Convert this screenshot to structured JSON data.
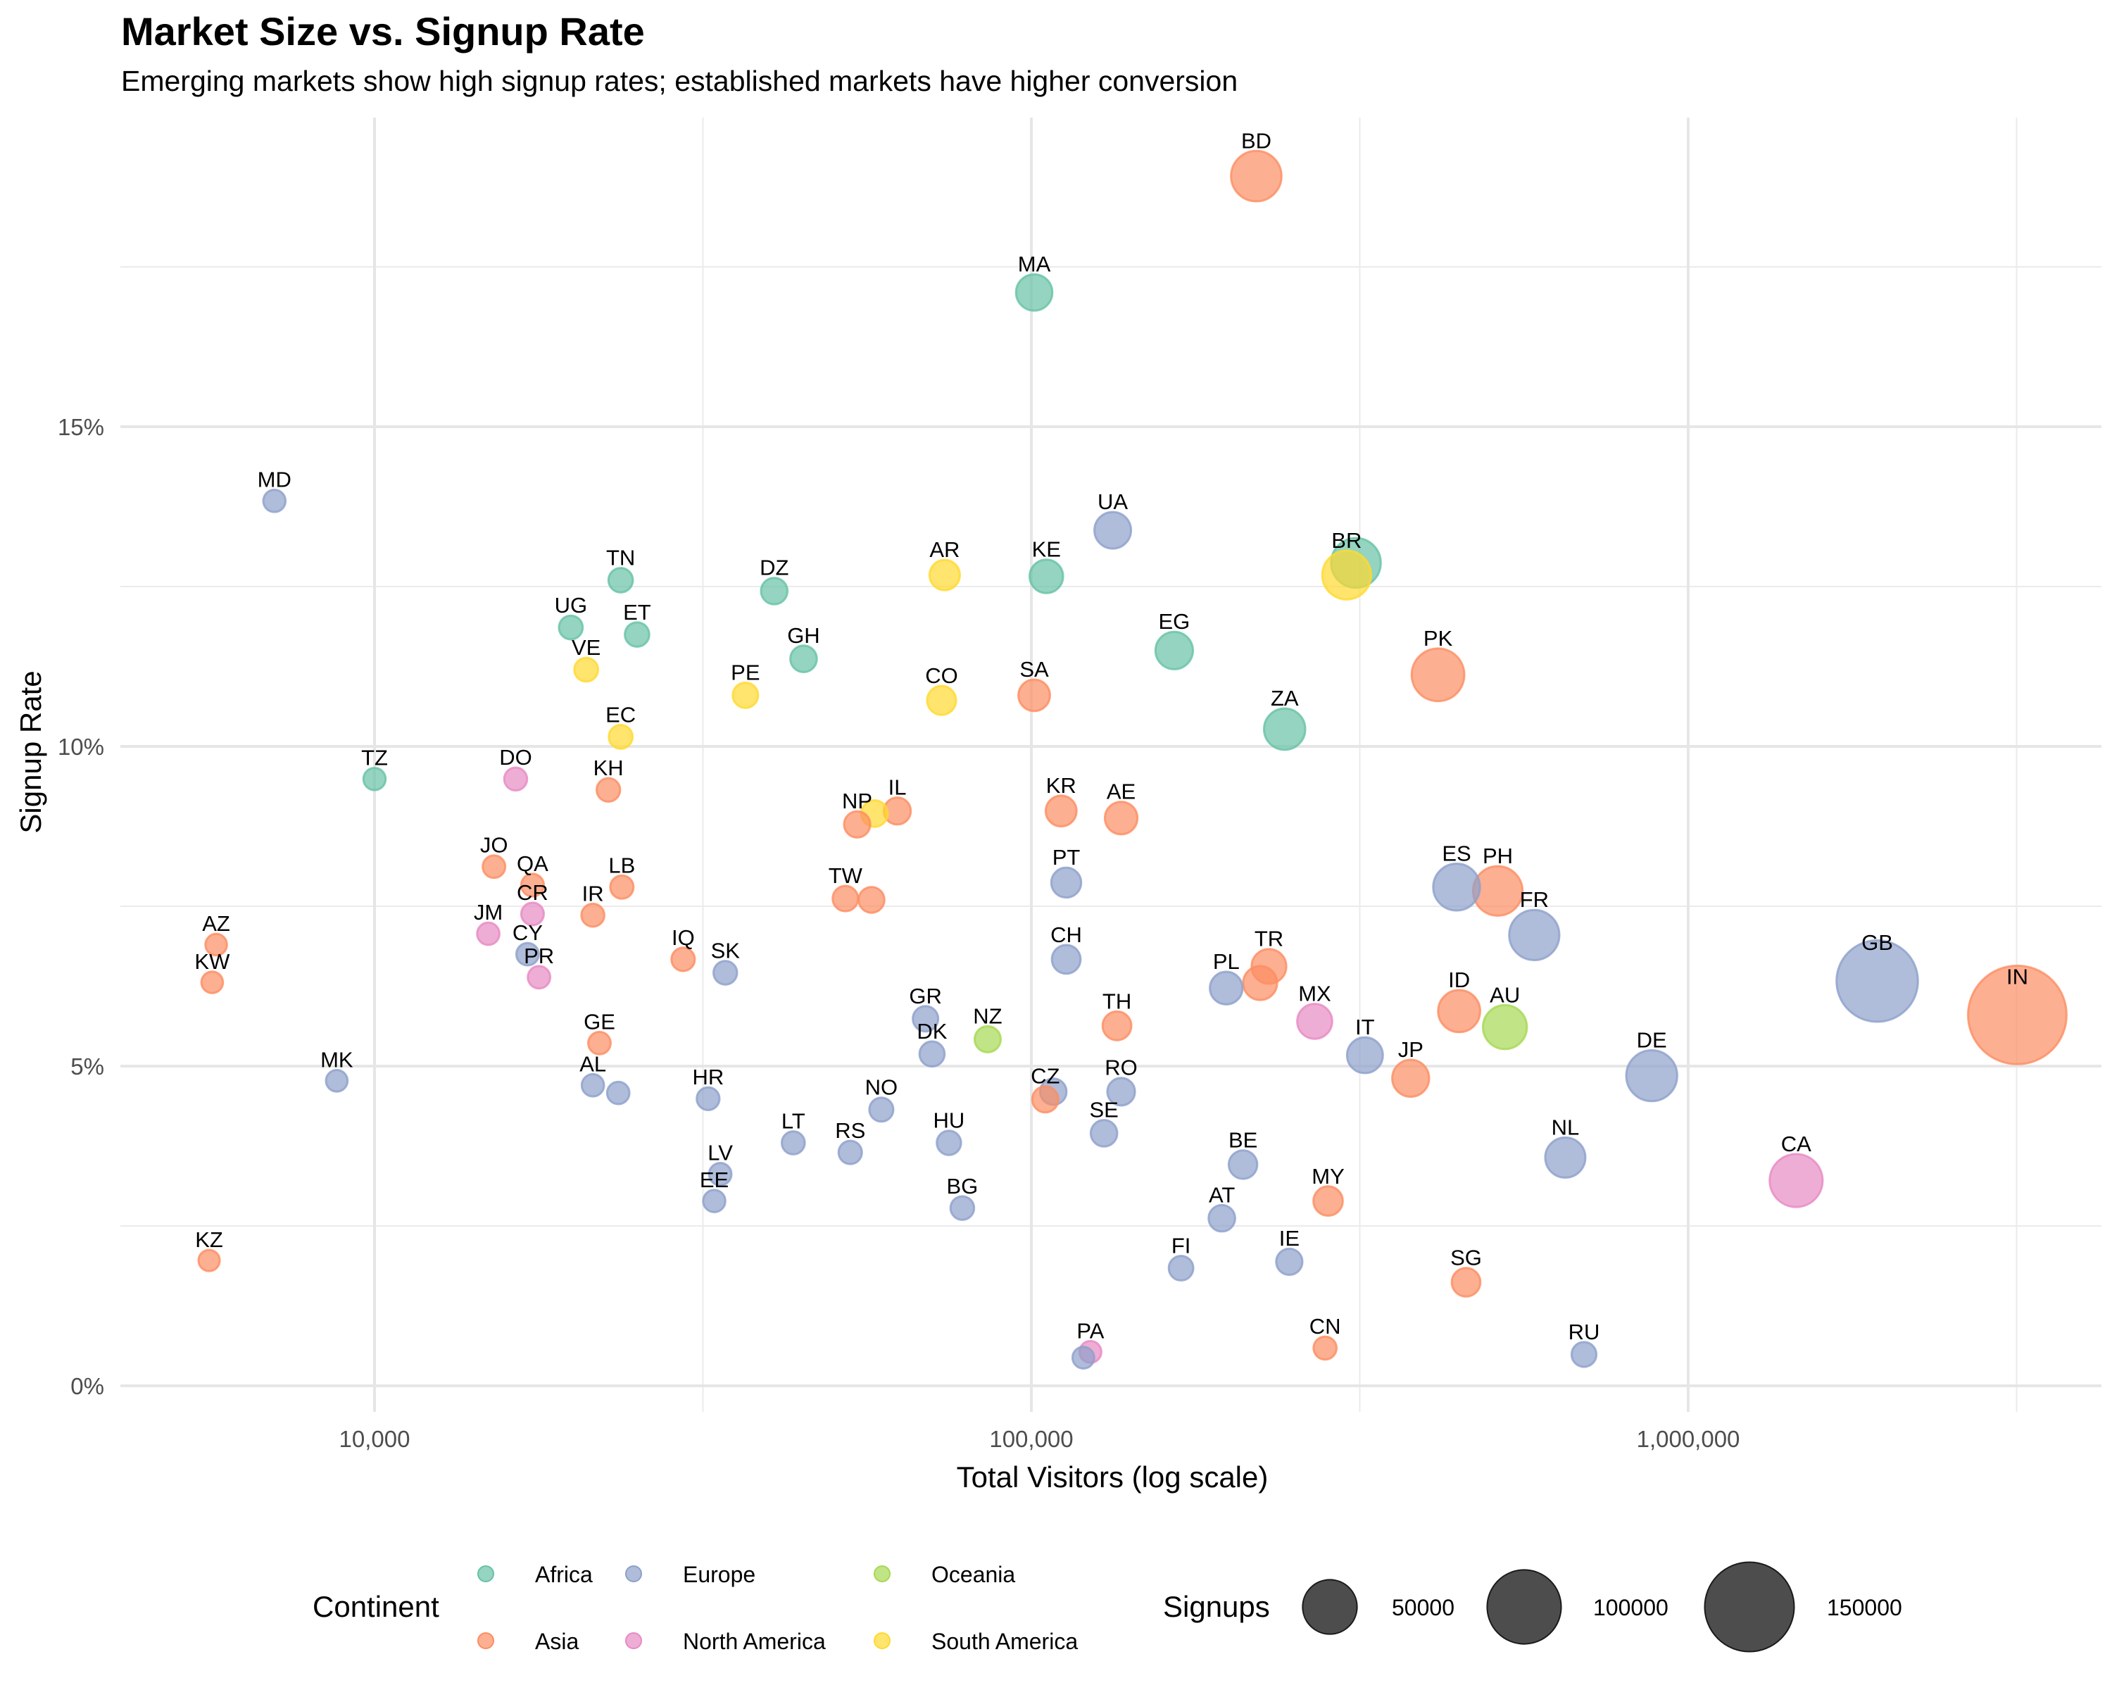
{
  "chart_data": {
    "type": "scatter",
    "title": "Market Size vs. Signup Rate",
    "subtitle": "Emerging markets show high signup rates; established markets have higher conversion",
    "xlabel": "Total Visitors (log scale)",
    "ylabel": "Signup Rate",
    "x_scale": "log10",
    "xlim": [
      4500,
      4000000
    ],
    "ylim": [
      -0.4,
      19.3
    ],
    "x_ticks": [
      {
        "value": 10000,
        "label": "10,000"
      },
      {
        "value": 100000,
        "label": "100,000"
      },
      {
        "value": 1000000,
        "label": "1,000,000"
      }
    ],
    "x_minor": [
      3162,
      31623,
      316228,
      3162278
    ],
    "y_ticks": [
      {
        "value": 0,
        "label": "0%"
      },
      {
        "value": 5,
        "label": "5%"
      },
      {
        "value": 10,
        "label": "10%"
      },
      {
        "value": 15,
        "label": "15%"
      }
    ],
    "y_minor": [
      2.5,
      7.5,
      12.5,
      17.5
    ],
    "grid": true,
    "continents": [
      {
        "name": "Africa",
        "color": "#66C2A5"
      },
      {
        "name": "Asia",
        "color": "#FC8D62"
      },
      {
        "name": "Europe",
        "color": "#8DA0CB"
      },
      {
        "name": "North America",
        "color": "#E78AC3"
      },
      {
        "name": "Oceania",
        "color": "#A6D854"
      },
      {
        "name": "South America",
        "color": "#FFD92F"
      }
    ],
    "color_legend": {
      "title": "Continent",
      "placement": "bottom"
    },
    "size_legend": {
      "title": "Signups",
      "placement": "bottom",
      "values": [
        50000,
        100000,
        150000
      ],
      "labels": [
        "50000",
        "100000",
        "150000"
      ]
    },
    "points": [
      {
        "code": "MD",
        "continent": "Europe",
        "visitors": 7040,
        "rate": 13.84,
        "signups": 974
      },
      {
        "code": "TZ",
        "continent": "Africa",
        "visitors": 10000,
        "rate": 9.49,
        "signups": 949
      },
      {
        "code": "UG",
        "continent": "Africa",
        "visitors": 19900,
        "rate": 11.86,
        "signups": 2360
      },
      {
        "code": "TN",
        "continent": "Africa",
        "visitors": 23700,
        "rate": 12.6,
        "signups": 2986
      },
      {
        "code": "ET",
        "continent": "Africa",
        "visitors": 25100,
        "rate": 11.75,
        "signups": 2949
      },
      {
        "code": "VE",
        "continent": "South America",
        "visitors": 21000,
        "rate": 11.2,
        "signups": 2352
      },
      {
        "code": "EC",
        "continent": "South America",
        "visitors": 23700,
        "rate": 10.15,
        "signups": 2406
      },
      {
        "code": "DO",
        "continent": "North America",
        "visitors": 16400,
        "rate": 9.49,
        "signups": 1556
      },
      {
        "code": "KH",
        "continent": "Asia",
        "visitors": 22700,
        "rate": 9.32,
        "signups": 2116
      },
      {
        "code": "DZ",
        "continent": "Africa",
        "visitors": 40600,
        "rate": 12.43,
        "signups": 5047
      },
      {
        "code": "GH",
        "continent": "Africa",
        "visitors": 45000,
        "rate": 11.37,
        "signups": 5117
      },
      {
        "code": "PE",
        "continent": "South America",
        "visitors": 36700,
        "rate": 10.8,
        "signups": 3964
      },
      {
        "code": "AR",
        "continent": "South America",
        "visitors": 73800,
        "rate": 12.68,
        "signups": 9358
      },
      {
        "code": "CO",
        "continent": "South America",
        "visitors": 73000,
        "rate": 10.72,
        "signups": 7826
      },
      {
        "code": "KE",
        "continent": "Africa",
        "visitors": 105400,
        "rate": 12.66,
        "signups": 13344
      },
      {
        "code": "UA",
        "continent": "Europe",
        "visitors": 133000,
        "rate": 13.38,
        "signups": 17795
      },
      {
        "code": "SA",
        "continent": "Asia",
        "visitors": 101000,
        "rate": 10.8,
        "signups": 10908
      },
      {
        "code": "EG",
        "continent": "Africa",
        "visitors": 165000,
        "rate": 11.5,
        "signups": 18975
      },
      {
        "code": "MA",
        "continent": "Africa",
        "visitors": 101000,
        "rate": 17.1,
        "signups": 17271
      },
      {
        "code": "BD",
        "continent": "Asia",
        "visitors": 220000,
        "rate": 18.92,
        "signups": 41624
      },
      {
        "code": "ZA",
        "continent": "Africa",
        "visitors": 243000,
        "rate": 10.27,
        "signups": 24956
      },
      {
        "code": "BR",
        "continent": "South America",
        "visitors": 302000,
        "rate": 12.68,
        "signups": 38294
      },
      {
        "code": "",
        "continent": "Africa",
        "visitors": 312000,
        "rate": 12.87,
        "signups": 40154
      },
      {
        "code": "PK",
        "continent": "Asia",
        "visitors": 416000,
        "rate": 11.12,
        "signups": 46259
      },
      {
        "code": "JO",
        "continent": "Asia",
        "visitors": 15200,
        "rate": 8.12,
        "signups": 1234
      },
      {
        "code": "QA",
        "continent": "Asia",
        "visitors": 17400,
        "rate": 7.83,
        "signups": 1362
      },
      {
        "code": "CR",
        "continent": "North America",
        "visitors": 17400,
        "rate": 7.38,
        "signups": 1284
      },
      {
        "code": "JM",
        "continent": "North America",
        "visitors": 14900,
        "rate": 7.07,
        "signups": 1053
      },
      {
        "code": "CY",
        "continent": "Europe",
        "visitors": 17100,
        "rate": 6.75,
        "signups": 1154
      },
      {
        "code": "PR",
        "continent": "North America",
        "visitors": 17800,
        "rate": 6.39,
        "signups": 1137
      },
      {
        "code": "IR",
        "continent": "Asia",
        "visitors": 21500,
        "rate": 7.36,
        "signups": 1582
      },
      {
        "code": "LB",
        "continent": "Asia",
        "visitors": 23800,
        "rate": 7.8,
        "signups": 1856
      },
      {
        "code": "AZ",
        "continent": "Asia",
        "visitors": 5740,
        "rate": 6.9,
        "signups": 396
      },
      {
        "code": "KW",
        "continent": "Asia",
        "visitors": 5660,
        "rate": 6.31,
        "signups": 357
      },
      {
        "code": "IQ",
        "continent": "Asia",
        "visitors": 29500,
        "rate": 6.67,
        "signups": 1968
      },
      {
        "code": "SK",
        "continent": "Europe",
        "visitors": 34200,
        "rate": 6.46,
        "signups": 2209
      },
      {
        "code": "GE",
        "continent": "Asia",
        "visitors": 22000,
        "rate": 5.36,
        "signups": 1179
      },
      {
        "code": "AL",
        "continent": "Europe",
        "visitors": 21500,
        "rate": 4.7,
        "signups": 1011
      },
      {
        "code": "",
        "continent": "Europe",
        "visitors": 23500,
        "rate": 4.58,
        "signups": 1076
      },
      {
        "code": "MK",
        "continent": "Europe",
        "visitors": 8760,
        "rate": 4.77,
        "signups": 418
      },
      {
        "code": "KZ",
        "continent": "Asia",
        "visitors": 5600,
        "rate": 1.96,
        "signups": 110
      },
      {
        "code": "HR",
        "continent": "Europe",
        "visitors": 32200,
        "rate": 4.49,
        "signups": 1446
      },
      {
        "code": "LV",
        "continent": "Europe",
        "visitors": 33600,
        "rate": 3.31,
        "signups": 1112
      },
      {
        "code": "EE",
        "continent": "Europe",
        "visitors": 32900,
        "rate": 2.89,
        "signups": 951
      },
      {
        "code": "NP",
        "continent": "Asia",
        "visitors": 54300,
        "rate": 8.78,
        "signups": 4768
      },
      {
        "code": "",
        "continent": "South America",
        "visitors": 57700,
        "rate": 8.95,
        "signups": 5164
      },
      {
        "code": "IL",
        "continent": "Asia",
        "visitors": 62500,
        "rate": 8.99,
        "signups": 5619
      },
      {
        "code": "TW",
        "continent": "Asia",
        "visitors": 52100,
        "rate": 7.62,
        "signups": 3970
      },
      {
        "code": "",
        "continent": "Asia",
        "visitors": 57100,
        "rate": 7.6,
        "signups": 4340
      },
      {
        "code": "KR",
        "continent": "Asia",
        "visitors": 111000,
        "rate": 8.99,
        "signups": 9979
      },
      {
        "code": "AE",
        "continent": "Asia",
        "visitors": 137000,
        "rate": 8.88,
        "signups": 12166
      },
      {
        "code": "PT",
        "continent": "Europe",
        "visitors": 113000,
        "rate": 7.87,
        "signups": 8893
      },
      {
        "code": "CH",
        "continent": "Europe",
        "visitors": 113000,
        "rate": 6.67,
        "signups": 7537
      },
      {
        "code": "GR",
        "continent": "Europe",
        "visitors": 69000,
        "rate": 5.74,
        "signups": 3961
      },
      {
        "code": "DK",
        "continent": "Europe",
        "visitors": 70600,
        "rate": 5.19,
        "signups": 3664
      },
      {
        "code": "NZ",
        "continent": "Oceania",
        "visitors": 85800,
        "rate": 5.42,
        "signups": 4650
      },
      {
        "code": "LT",
        "continent": "Europe",
        "visitors": 43400,
        "rate": 3.8,
        "signups": 1649
      },
      {
        "code": "RS",
        "continent": "Europe",
        "visitors": 53000,
        "rate": 3.65,
        "signups": 1935
      },
      {
        "code": "NO",
        "continent": "Europe",
        "visitors": 59100,
        "rate": 4.32,
        "signups": 2553
      },
      {
        "code": "HU",
        "continent": "Europe",
        "visitors": 74900,
        "rate": 3.8,
        "signups": 2846
      },
      {
        "code": "BG",
        "continent": "Europe",
        "visitors": 78500,
        "rate": 2.78,
        "signups": 2182
      },
      {
        "code": "",
        "continent": "Europe",
        "visitors": 108000,
        "rate": 4.6,
        "signups": 4968
      },
      {
        "code": "CZ",
        "continent": "Asia",
        "visitors": 105000,
        "rate": 4.48,
        "signups": 4704
      },
      {
        "code": "RO",
        "continent": "Europe",
        "visitors": 137000,
        "rate": 4.6,
        "signups": 6302
      },
      {
        "code": "SE",
        "continent": "Europe",
        "visitors": 129000,
        "rate": 3.95,
        "signups": 5096
      },
      {
        "code": "TH",
        "continent": "Asia",
        "visitors": 135000,
        "rate": 5.63,
        "signups": 7601
      },
      {
        "code": "",
        "continent": "Europe",
        "visitors": 120000,
        "rate": 0.44,
        "signups": 528
      },
      {
        "code": "PA",
        "continent": "North America",
        "visitors": 123000,
        "rate": 0.53,
        "signups": 652
      },
      {
        "code": "PL",
        "continent": "Europe",
        "visitors": 198000,
        "rate": 6.22,
        "signups": 12316
      },
      {
        "code": "",
        "continent": "Asia",
        "visitors": 223000,
        "rate": 6.3,
        "signups": 14049
      },
      {
        "code": "TR",
        "continent": "Asia",
        "visitors": 230000,
        "rate": 6.56,
        "signups": 15088
      },
      {
        "code": "MX",
        "continent": "North America",
        "visitors": 270000,
        "rate": 5.7,
        "signups": 15390
      },
      {
        "code": "IT",
        "continent": "Europe",
        "visitors": 322000,
        "rate": 5.17,
        "signups": 16647
      },
      {
        "code": "BE",
        "continent": "Europe",
        "visitors": 210000,
        "rate": 3.46,
        "signups": 7266
      },
      {
        "code": "AT",
        "continent": "Europe",
        "visitors": 195000,
        "rate": 2.62,
        "signups": 5109
      },
      {
        "code": "FI",
        "continent": "Europe",
        "visitors": 169000,
        "rate": 1.84,
        "signups": 3110
      },
      {
        "code": "IE",
        "continent": "Europe",
        "visitors": 247000,
        "rate": 1.94,
        "signups": 4792
      },
      {
        "code": "MY",
        "continent": "Asia",
        "visitors": 283000,
        "rate": 2.89,
        "signups": 8179
      },
      {
        "code": "CN",
        "continent": "Asia",
        "visitors": 280000,
        "rate": 0.59,
        "signups": 1652
      },
      {
        "code": "ES",
        "continent": "Europe",
        "visitors": 444000,
        "rate": 7.8,
        "signups": 34632
      },
      {
        "code": "PH",
        "continent": "Asia",
        "visitors": 513000,
        "rate": 7.74,
        "signups": 39706
      },
      {
        "code": "FR",
        "continent": "Europe",
        "visitors": 583000,
        "rate": 7.05,
        "signups": 41102
      },
      {
        "code": "ID",
        "continent": "Asia",
        "visitors": 448000,
        "rate": 5.86,
        "signups": 26253
      },
      {
        "code": "AU",
        "continent": "Oceania",
        "visitors": 526000,
        "rate": 5.61,
        "signups": 29509
      },
      {
        "code": "JP",
        "continent": "Asia",
        "visitors": 378000,
        "rate": 4.81,
        "signups": 18182
      },
      {
        "code": "DE",
        "continent": "Europe",
        "visitors": 880000,
        "rate": 4.85,
        "signups": 42680
      },
      {
        "code": "NL",
        "continent": "Europe",
        "visitors": 650000,
        "rate": 3.57,
        "signups": 23205
      },
      {
        "code": "SG",
        "continent": "Asia",
        "visitors": 459000,
        "rate": 1.62,
        "signups": 7436
      },
      {
        "code": "RU",
        "continent": "Europe",
        "visitors": 694000,
        "rate": 0.49,
        "signups": 3401
      },
      {
        "code": "GB",
        "continent": "Europe",
        "visitors": 1940000,
        "rate": 6.33,
        "signups": 122802
      },
      {
        "code": "CA",
        "continent": "North America",
        "visitors": 1460000,
        "rate": 3.21,
        "signups": 46866
      },
      {
        "code": "IN",
        "continent": "Asia",
        "visitors": 3170000,
        "rate": 5.8,
        "signups": 183860
      }
    ]
  }
}
